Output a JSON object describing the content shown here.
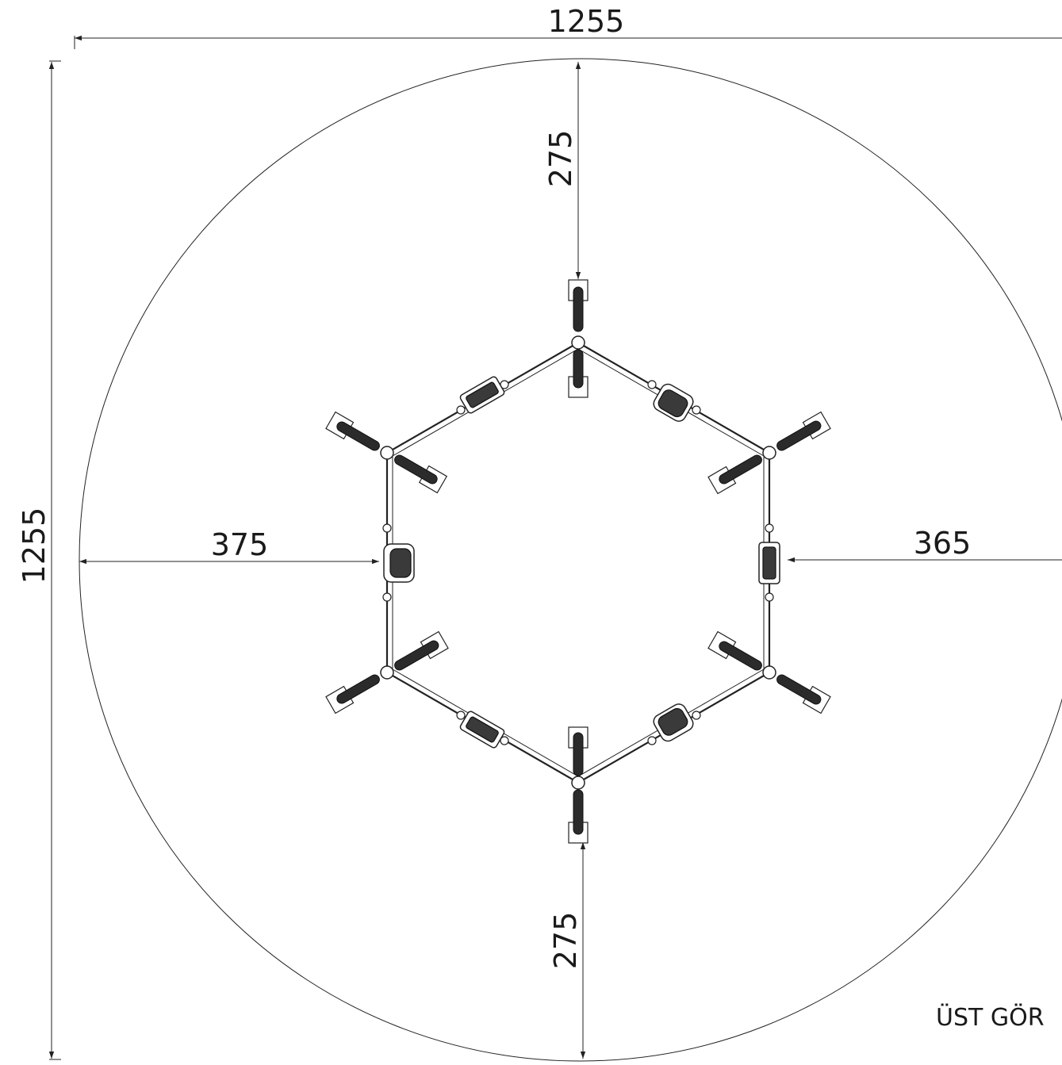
{
  "drawing": {
    "view_label": "ÜST GÖR",
    "dimensions": {
      "overall_width": "1255",
      "overall_height": "1255",
      "top_clearance": "275",
      "bottom_clearance": "275",
      "left_clearance": "375",
      "right_clearance": "365"
    },
    "line_color": "#222222",
    "background_color": "#ffffff"
  }
}
